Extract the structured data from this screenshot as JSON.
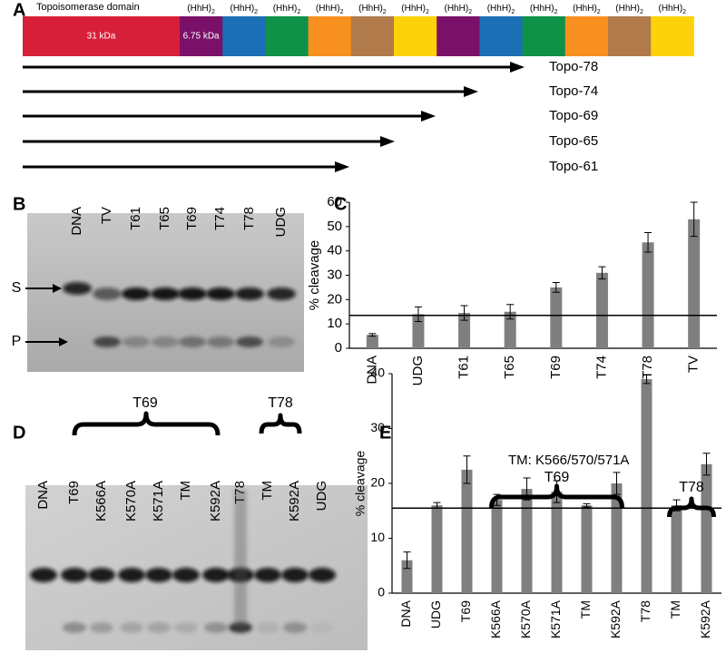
{
  "panel_labels": [
    "A",
    "B",
    "C",
    "D",
    "E"
  ],
  "domain_map": {
    "domain_label": "Topoisomerase domain",
    "segments": [
      {
        "label": "31 kDa",
        "color": "#d81f3a"
      },
      {
        "label": "6.75 kDa",
        "color": "#7b1068"
      },
      {
        "color": "#1a6fb5"
      },
      {
        "color": "#0f9148"
      },
      {
        "color": "#f7901e"
      },
      {
        "color": "#b07a4a"
      },
      {
        "color": "#fdd20a"
      },
      {
        "color": "#7b1068"
      },
      {
        "color": "#1a6fb5"
      },
      {
        "color": "#0f9148"
      },
      {
        "color": "#f7901e"
      },
      {
        "color": "#b07a4a"
      },
      {
        "color": "#fdd20a"
      }
    ],
    "repeat_labels": [
      {
        "text": "(HhH)",
        "subscript": "2"
      },
      {
        "text": "(HhH)",
        "subscript": "2"
      },
      {
        "text": "(HhH)",
        "subscript": "2"
      },
      {
        "text": "(HhH)",
        "subscript": "2"
      },
      {
        "text": "(HhH)",
        "subscript": "2"
      },
      {
        "text": "(HhH)",
        "subscript": "2"
      },
      {
        "text": "(HhH)",
        "subscript": "2"
      },
      {
        "text": "(HhH)",
        "subscript": "2"
      },
      {
        "text": "(HhH)",
        "subscript": "2"
      },
      {
        "text": "(HhH)",
        "subscript": "2"
      },
      {
        "text": "(HhH)",
        "subscript": "2"
      },
      {
        "text": "(HhH)",
        "subscript": "2"
      }
    ]
  },
  "constructs": [
    "Topo-78",
    "Topo-74",
    "Topo-69",
    "Topo-65",
    "Topo-61"
  ],
  "gel_b": {
    "lanes": [
      "DNA",
      "TV",
      "T61",
      "T65",
      "T69",
      "T74",
      "T78",
      "UDG"
    ],
    "markers": [
      "S",
      "P"
    ]
  },
  "gel_d": {
    "lanes": [
      "DNA",
      "T69",
      "K566A",
      "K570A",
      "K571A",
      "TM",
      "K592A",
      "T78",
      "TM",
      "K592A",
      "UDG"
    ],
    "groups": [
      "T69",
      "T78"
    ]
  },
  "chart_data": [
    {
      "type": "bar",
      "ylabel": "% cleavage",
      "categories": [
        "DNA",
        "UDG",
        "T61",
        "T65",
        "T69",
        "T74",
        "T78",
        "TV"
      ],
      "values": [
        5.5,
        14,
        14.5,
        15,
        25,
        31,
        43.5,
        53
      ],
      "errors": [
        0.5,
        3,
        3,
        3,
        2,
        2.5,
        4,
        7
      ],
      "color": "#7f7f7f",
      "ylim": [
        0,
        60
      ],
      "yticks": [
        0,
        10,
        20,
        30,
        40,
        50,
        60
      ],
      "reference_line": 13.5
    },
    {
      "type": "bar",
      "ylabel": "% cleavage",
      "annotation": "TM: K566/570/571A",
      "categories": [
        "DNA",
        "UDG",
        "T69",
        "K566A",
        "K570A",
        "K571A",
        "TM",
        "K592A",
        "T78",
        "TM",
        "K592A"
      ],
      "values": [
        6,
        16,
        22.5,
        17,
        19,
        18.5,
        16,
        20,
        39,
        16,
        23.5
      ],
      "errors": [
        1.5,
        0.5,
        2.5,
        1,
        2,
        2,
        0.3,
        2,
        0.8,
        1,
        2
      ],
      "color": "#7f7f7f",
      "ylim": [
        0,
        40
      ],
      "yticks": [
        0,
        10,
        20,
        30,
        40
      ],
      "reference_line": 15.5,
      "group_labels": [
        "T69",
        "T78"
      ]
    }
  ]
}
